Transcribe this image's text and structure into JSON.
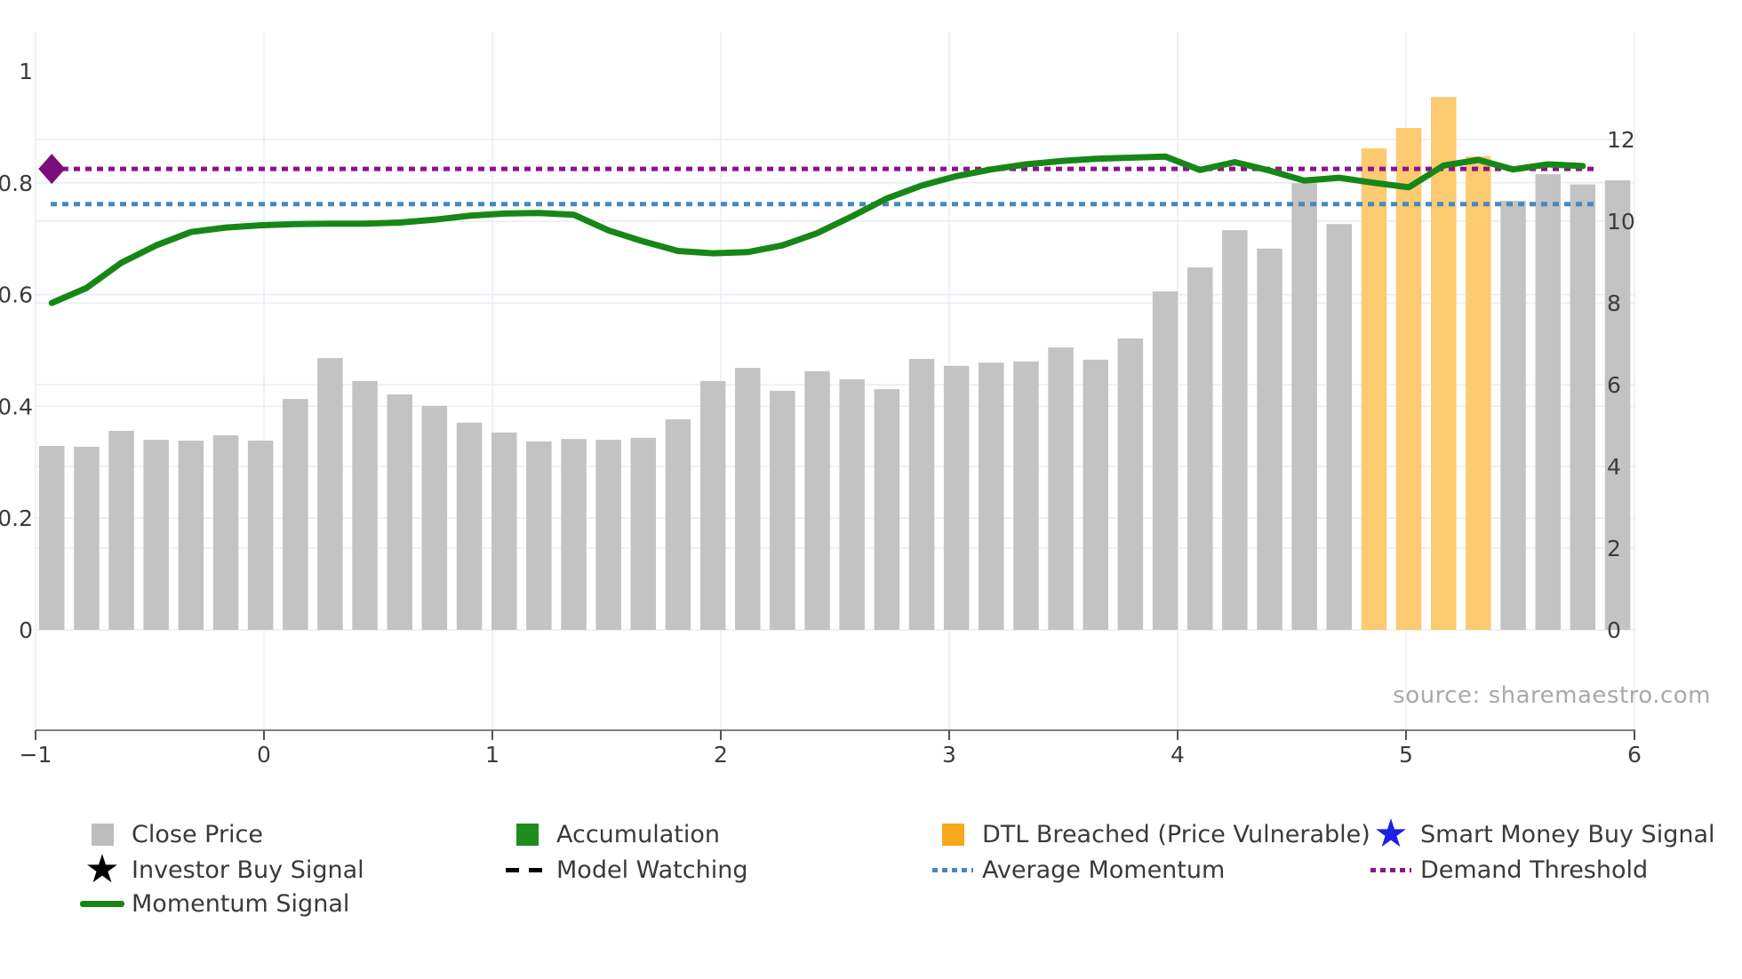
{
  "source_label": "source: sharemaestro.com",
  "chart_data": {
    "type": "bar+line",
    "title": "",
    "x_axis": {
      "tick_values": [
        -1,
        0,
        1,
        2,
        3,
        4,
        5,
        6
      ],
      "tick_labels": [
        "−1",
        "0",
        "1",
        "2",
        "3",
        "4",
        "5",
        "6"
      ]
    },
    "left_axis": {
      "tick_values": [
        0,
        0.2,
        0.4,
        0.6,
        0.8,
        1
      ],
      "tick_labels": [
        "0",
        "0.2",
        "0.4",
        "0.6",
        "0.8",
        "1"
      ],
      "grid_ticks": [
        0.2,
        0.4,
        0.6,
        0.8
      ],
      "range": [
        0,
        1
      ]
    },
    "right_axis": {
      "tick_values": [
        0,
        2,
        4,
        6,
        8,
        10,
        12
      ],
      "tick_labels": [
        "0",
        "2",
        "4",
        "6",
        "8",
        "10",
        "12"
      ],
      "grid_ticks": [
        2,
        4,
        6,
        8,
        10,
        12
      ],
      "range": [
        0,
        13.6
      ]
    },
    "close_price": [
      4.5,
      4.48,
      4.87,
      4.65,
      4.63,
      4.76,
      4.63,
      5.65,
      6.65,
      6.09,
      5.76,
      5.48,
      5.07,
      4.83,
      4.61,
      4.67,
      4.65,
      4.7,
      5.15,
      6.09,
      6.41,
      5.85,
      6.33,
      6.13,
      5.89,
      6.63,
      6.46,
      6.54,
      6.57,
      6.91,
      6.61,
      7.13,
      8.28,
      8.87,
      9.78,
      9.33,
      10.93,
      9.93,
      11.78,
      12.28,
      13.04,
      11.59,
      10.5,
      11.15,
      10.9,
      11.0
    ],
    "dtl_breached_indices": [
      38,
      39,
      40,
      41
    ],
    "momentum_signal": [
      0.585,
      0.612,
      0.657,
      0.688,
      0.712,
      0.72,
      0.724,
      0.726,
      0.727,
      0.727,
      0.729,
      0.734,
      0.741,
      0.745,
      0.746,
      0.743,
      0.715,
      0.695,
      0.678,
      0.674,
      0.676,
      0.688,
      0.71,
      0.74,
      0.772,
      0.795,
      0.812,
      0.824,
      0.833,
      0.839,
      0.843,
      0.845,
      0.847,
      0.823,
      0.837,
      0.822,
      0.804,
      0.809,
      0.8,
      0.792,
      0.831,
      0.841,
      0.824,
      0.833,
      0.83
    ],
    "average_momentum": 0.762,
    "demand_threshold": 0.825,
    "colors": {
      "close_price_bar": "#c3c3c3",
      "dtl_breached_bar": "#fcca70",
      "momentum": "#168716",
      "average_momentum": "#4689c0",
      "demand_threshold": "#8d128d",
      "demand_marker": "#7b0e7b",
      "gridline": "#e9edf3",
      "spine": "#7f7f7f",
      "tick": "#555555",
      "tick_label": "#3c3c3c"
    },
    "legend": [
      {
        "label": "Close Price",
        "marker": "square",
        "color": "#bdbdbd",
        "col": 0,
        "row": 0
      },
      {
        "label": "Investor Buy Signal",
        "marker": "star",
        "color": "#000000",
        "col": 0,
        "row": 1
      },
      {
        "label": "Momentum Signal",
        "marker": "line",
        "color": "#168716",
        "col": 0,
        "row": 2
      },
      {
        "label": "Accumulation",
        "marker": "square",
        "color": "#1e8c1e",
        "col": 1,
        "row": 0
      },
      {
        "label": "Model Watching",
        "marker": "dashes",
        "color": "#000000",
        "col": 1,
        "row": 1
      },
      {
        "label": "DTL Breached (Price Vulnerable)",
        "marker": "square",
        "color": "#f8a81d",
        "col": 2,
        "row": 0
      },
      {
        "label": "Average Momentum",
        "marker": "dots",
        "color": "#4689c0",
        "col": 2,
        "row": 1
      },
      {
        "label": "Smart Money Buy Signal",
        "marker": "star",
        "color": "#1f1fe8",
        "col": 3,
        "row": 0
      },
      {
        "label": "Demand Threshold",
        "marker": "dots",
        "color": "#8d128d",
        "col": 3,
        "row": 1
      }
    ]
  }
}
